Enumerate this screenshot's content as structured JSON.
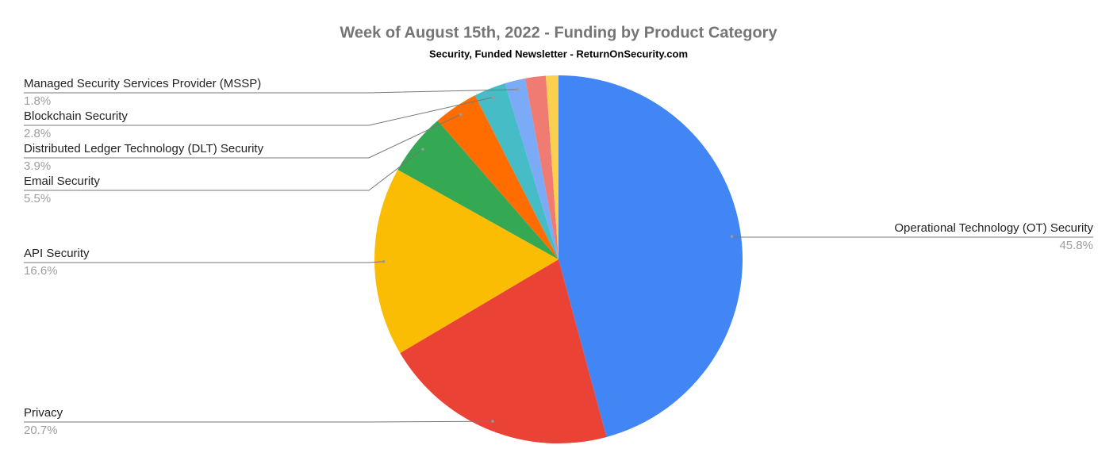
{
  "chart_data": {
    "type": "pie",
    "title": "Week of August 15th, 2022 - Funding by Product Category",
    "subtitle": "Security, Funded Newsletter - ReturnOnSecurity.com",
    "categories": [
      "Operational Technology (OT) Security",
      "Privacy",
      "API Security",
      "Email Security",
      "Distributed Ledger Technology (DLT) Security",
      "Blockchain Security",
      "Managed Security Services Provider (MSSP)",
      null,
      null
    ],
    "values": [
      45.8,
      20.7,
      16.6,
      5.5,
      3.9,
      2.8,
      1.8,
      1.8,
      1.1
    ],
    "value_labels": [
      "45.8%",
      "20.7%",
      "16.6%",
      "5.5%",
      "3.9%",
      "2.8%",
      "1.8%",
      null,
      null
    ],
    "colors": [
      "#4285f4",
      "#ea4335",
      "#fbbc04",
      "#34a853",
      "#ff6d01",
      "#46bdc6",
      "#7baaf7",
      "#f07b72",
      "#fcd04f"
    ]
  }
}
